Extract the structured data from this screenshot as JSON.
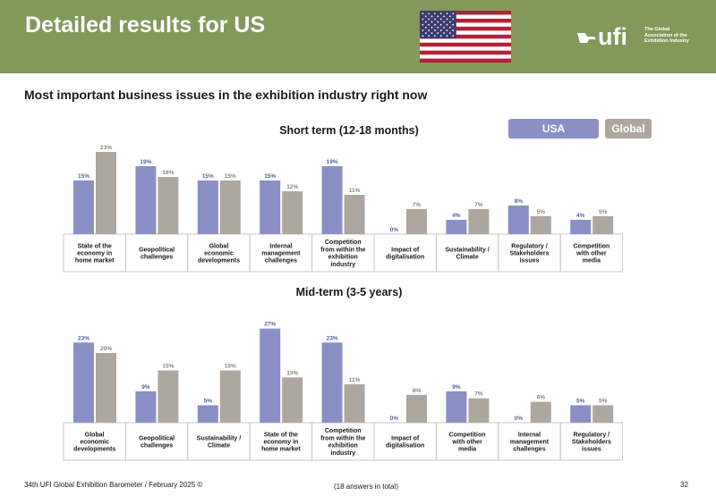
{
  "header": {
    "title": "Detailed results for US",
    "logo_wordmark": "ufi",
    "logo_tagline": [
      "The Global",
      "Association of the",
      "Exhibition Industry"
    ]
  },
  "subtitle": "Most important business issues in the exhibition industry right now",
  "legend": {
    "usa": "USA",
    "global": "Global"
  },
  "colors": {
    "header_green": "#83995a",
    "usa": "#8a8fc6",
    "global": "#aea79f"
  },
  "chart_data": [
    {
      "type": "bar",
      "title": "Short term (12-18 months)",
      "categories": [
        [
          "State of the",
          "economy in",
          "home market"
        ],
        [
          "Geopolitical",
          "challenges"
        ],
        [
          "Global",
          "economic",
          "developments"
        ],
        [
          "Internal",
          "management",
          "challenges"
        ],
        [
          "Competition",
          "from within the",
          "exhibition",
          "industry"
        ],
        [
          "Impact of",
          "digitalisation"
        ],
        [
          "Sustainability /",
          "Climate"
        ],
        [
          "Regulatory /",
          "Stakeholders",
          "issues"
        ],
        [
          "Competition",
          "with other",
          "media"
        ]
      ],
      "series": [
        {
          "name": "USA",
          "values": [
            15,
            19,
            15,
            15,
            19,
            0,
            4,
            8,
            4
          ]
        },
        {
          "name": "Global",
          "values": [
            23,
            16,
            15,
            12,
            11,
            7,
            7,
            5,
            5
          ]
        }
      ],
      "unit": "%"
    },
    {
      "type": "bar",
      "title": "Mid-term (3-5 years)",
      "categories": [
        [
          "Global",
          "economic",
          "developments"
        ],
        [
          "Geopolitical",
          "challenges"
        ],
        [
          "Sustainability /",
          "Climate"
        ],
        [
          "State of the",
          "economy in",
          "home market"
        ],
        [
          "Competition",
          "from within the",
          "exhibition",
          "industry"
        ],
        [
          "Impact of",
          "digitalisation"
        ],
        [
          "Competition",
          "with other",
          "media"
        ],
        [
          "Internal",
          "management",
          "challenges"
        ],
        [
          "Regulatory /",
          "Stakeholders",
          "issues"
        ]
      ],
      "series": [
        {
          "name": "USA",
          "values": [
            23,
            9,
            5,
            27,
            23,
            0,
            9,
            0,
            5
          ]
        },
        {
          "name": "Global",
          "values": [
            20,
            15,
            15,
            13,
            11,
            8,
            7,
            6,
            5
          ]
        }
      ],
      "unit": "%"
    }
  ],
  "footer": {
    "left": "34th UFI Global Exhibition Barometer / February 2025 ©",
    "center": "(18 answers in total)",
    "page": "32"
  }
}
